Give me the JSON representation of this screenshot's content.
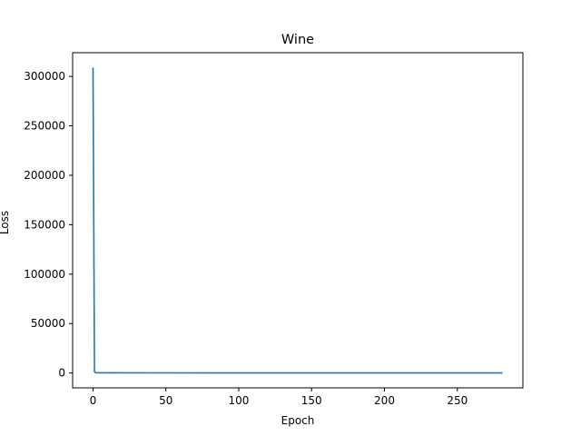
{
  "chart_data": {
    "type": "line",
    "title": "Wine",
    "xlabel": "Epoch",
    "ylabel": "Loss",
    "xlim": [
      -14,
      295
    ],
    "ylim": [
      -15000,
      324000
    ],
    "x_ticks": [
      0,
      50,
      100,
      150,
      200,
      250
    ],
    "y_ticks": [
      0,
      50000,
      100000,
      150000,
      200000,
      250000,
      300000
    ],
    "grid": false,
    "legend": "none",
    "series": [
      {
        "color": "#1f77b4",
        "x": [
          0,
          1,
          2,
          10,
          50,
          100,
          150,
          200,
          250,
          281
        ],
        "y": [
          309000,
          1200,
          300,
          200,
          150,
          120,
          100,
          90,
          85,
          80
        ]
      }
    ]
  }
}
